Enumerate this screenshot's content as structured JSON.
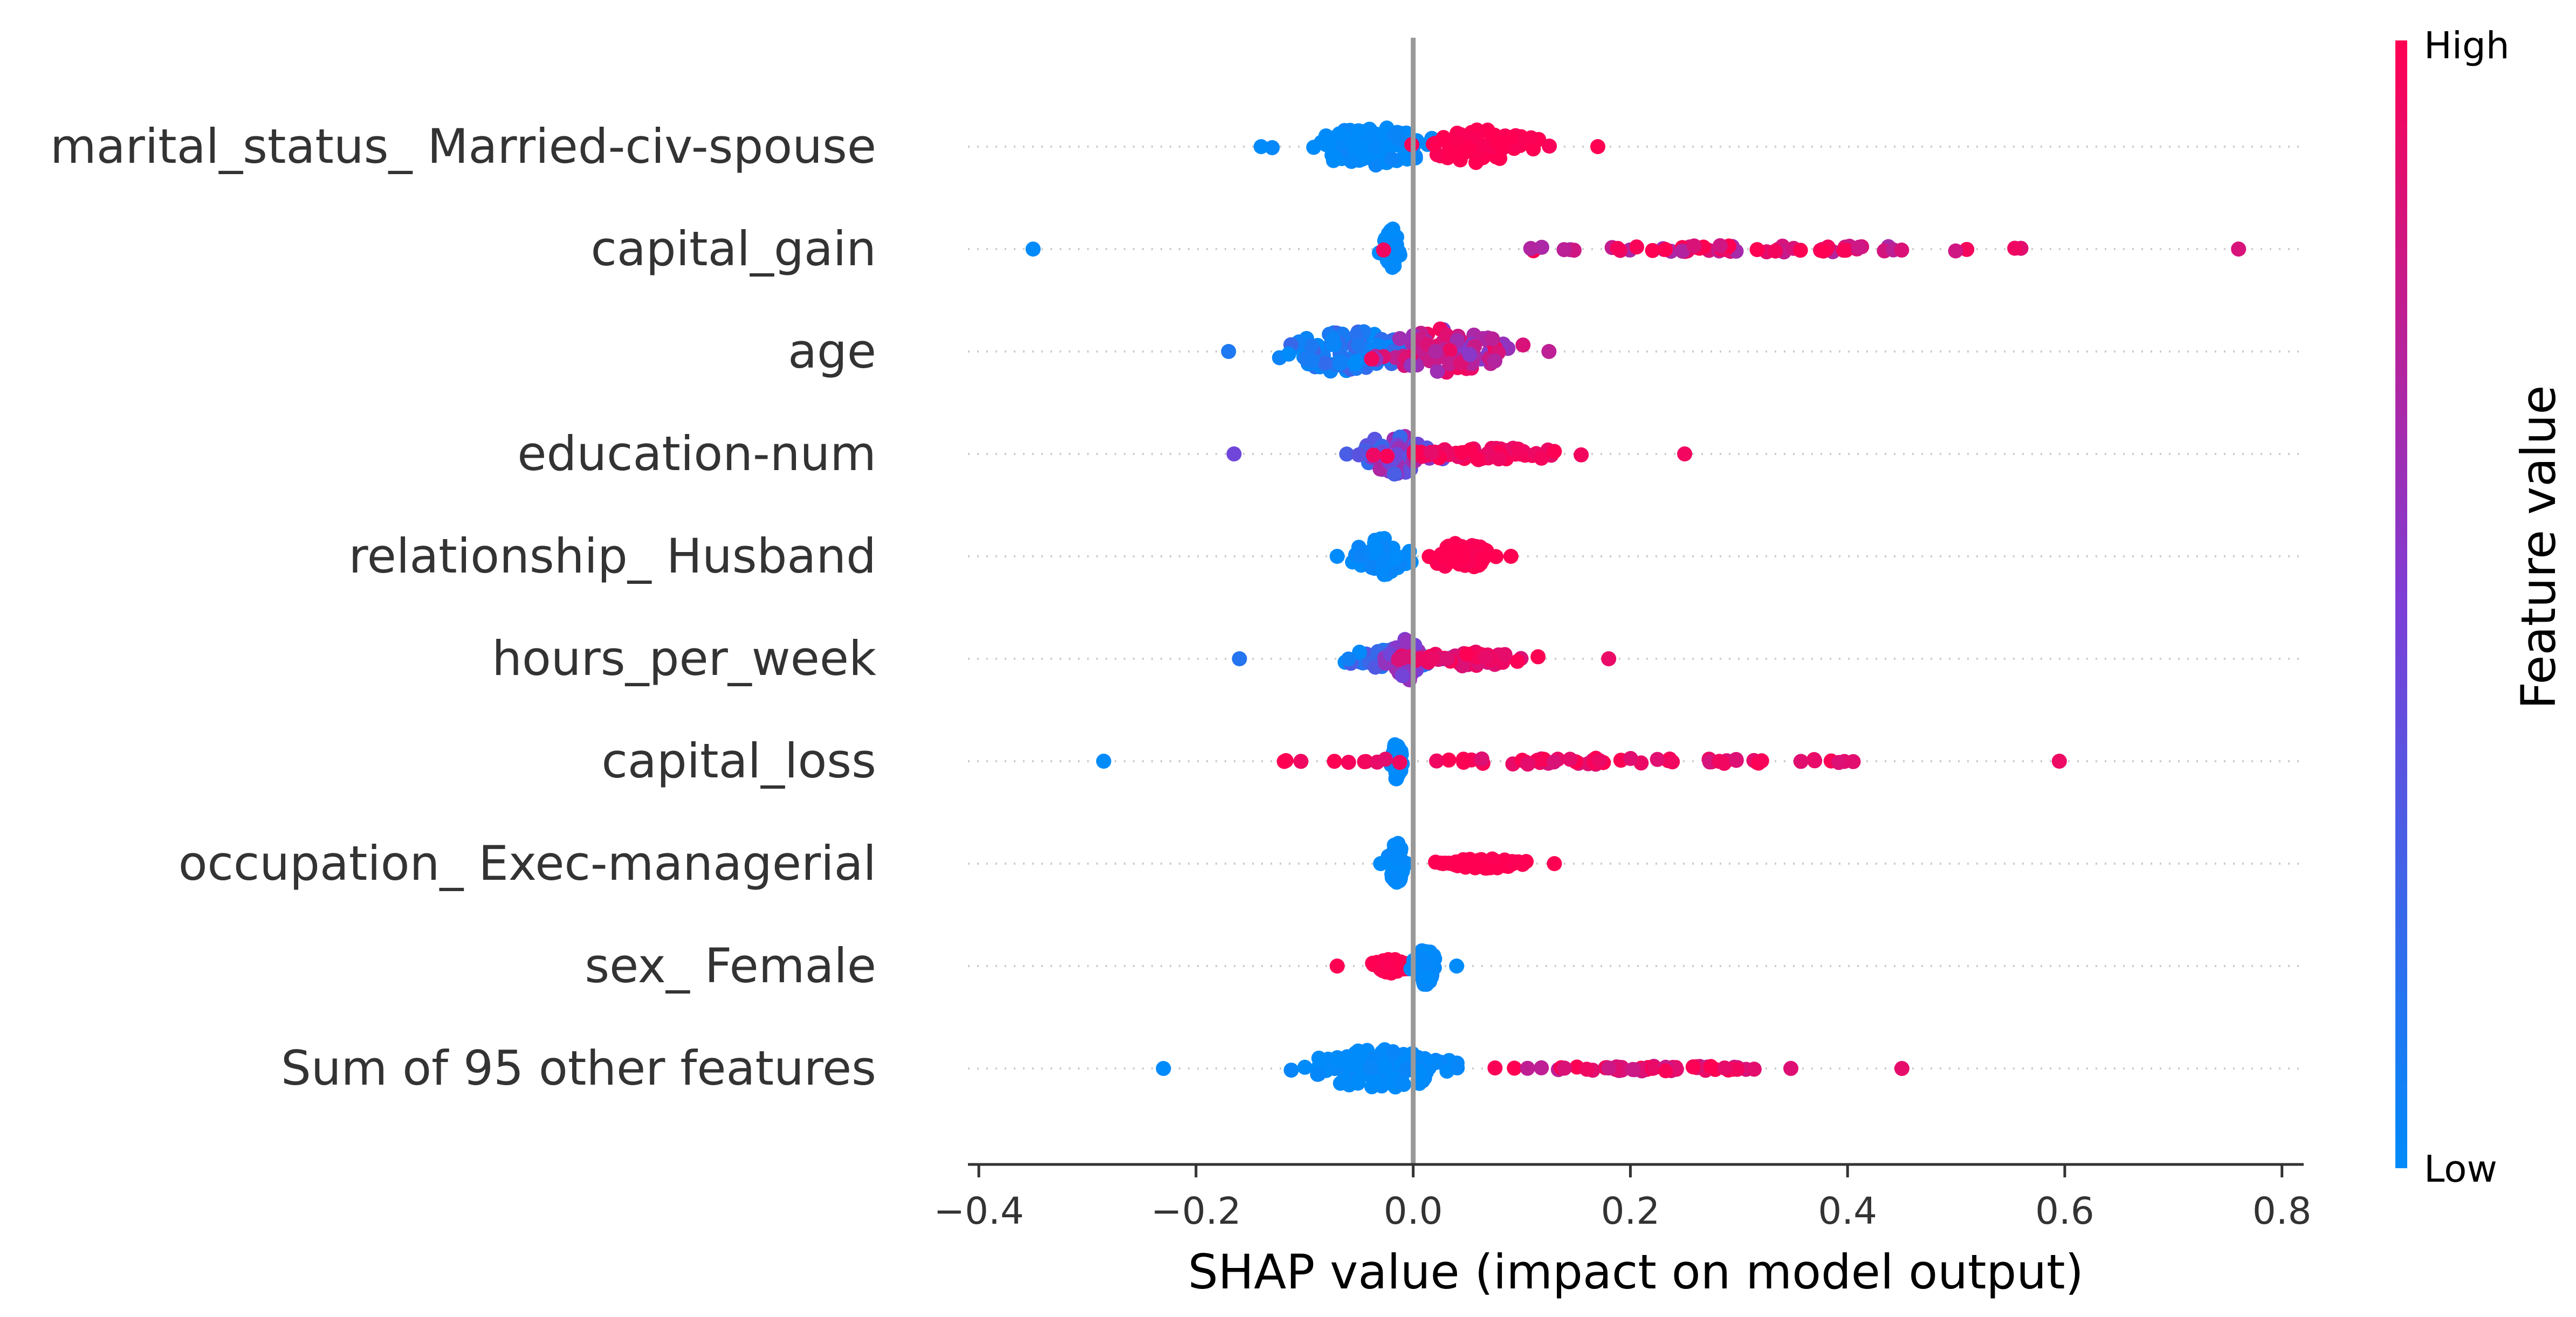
{
  "chart_data": {
    "type": "scatter",
    "subtype": "shap-beeswarm",
    "xlabel": "SHAP value (impact on model output)",
    "xlim": [
      -0.41,
      0.82
    ],
    "xticks": [
      -0.4,
      -0.2,
      0.0,
      0.2,
      0.4,
      0.6,
      0.8
    ],
    "xtick_labels": [
      "−0.4",
      "−0.2",
      "0.0",
      "0.2",
      "0.4",
      "0.6",
      "0.8"
    ],
    "zero_line": true,
    "grid": false,
    "colorbar": {
      "label": "Feature value",
      "high_label": "High",
      "low_label": "Low",
      "colors": [
        "#008bfb",
        "#7c3ed6",
        "#ff0052"
      ]
    },
    "features": [
      {
        "name": "marital_status_ Married-civ-spouse",
        "min": -0.14,
        "max": 0.17,
        "clusters": [
          {
            "center": -0.04,
            "spread": 0.05,
            "half_width": 0.4,
            "hue": 0.0,
            "hue_var": 0.05
          },
          {
            "center": 0.065,
            "spread": 0.05,
            "half_width": 0.33,
            "hue": 1.0,
            "hue_var": 0.03
          }
        ]
      },
      {
        "name": "capital_gain",
        "min": -0.35,
        "max": 0.76,
        "clusters": [
          {
            "center": -0.02,
            "spread": 0.006,
            "half_width": 0.42,
            "hue": 0.0,
            "hue_var": 0.02
          },
          {
            "center": 0.3,
            "spread": 0.22,
            "half_width": 0.07,
            "hue": 0.85,
            "hue_var": 0.2
          }
        ]
      },
      {
        "name": "age",
        "min": -0.17,
        "max": 0.125,
        "clusters": [
          {
            "center": -0.06,
            "spread": 0.05,
            "half_width": 0.42,
            "hue": 0.12,
            "hue_var": 0.15
          },
          {
            "center": 0.03,
            "spread": 0.05,
            "half_width": 0.45,
            "hue": 0.75,
            "hue_var": 0.22
          }
        ]
      },
      {
        "name": "education-num",
        "min": -0.165,
        "max": 0.25,
        "clusters": [
          {
            "center": -0.015,
            "spread": 0.035,
            "half_width": 0.42,
            "hue": 0.45,
            "hue_var": 0.25
          },
          {
            "center": 0.07,
            "spread": 0.08,
            "half_width": 0.12,
            "hue": 0.95,
            "hue_var": 0.05
          }
        ]
      },
      {
        "name": "relationship_ Husband",
        "min": -0.07,
        "max": 0.09,
        "clusters": [
          {
            "center": -0.03,
            "spread": 0.022,
            "half_width": 0.37,
            "hue": 0.0,
            "hue_var": 0.05
          },
          {
            "center": 0.045,
            "spread": 0.025,
            "half_width": 0.27,
            "hue": 1.0,
            "hue_var": 0.03
          }
        ]
      },
      {
        "name": "hours_per_week",
        "min": -0.16,
        "max": 0.18,
        "clusters": [
          {
            "center": -0.02,
            "spread": 0.04,
            "half_width": 0.2,
            "hue": 0.15,
            "hue_var": 0.2
          },
          {
            "center": -0.005,
            "spread": 0.012,
            "half_width": 0.42,
            "hue": 0.55,
            "hue_var": 0.1
          },
          {
            "center": 0.05,
            "spread": 0.05,
            "half_width": 0.14,
            "hue": 0.92,
            "hue_var": 0.08
          }
        ]
      },
      {
        "name": "capital_loss",
        "min": -0.285,
        "max": 0.595,
        "clusters": [
          {
            "center": -0.015,
            "spread": 0.004,
            "half_width": 0.42,
            "hue": 0.0,
            "hue_var": 0.02
          },
          {
            "center": 0.15,
            "spread": 0.25,
            "half_width": 0.06,
            "hue": 0.93,
            "hue_var": 0.1
          }
        ]
      },
      {
        "name": "occupation_ Exec-managerial",
        "min": -0.03,
        "max": 0.13,
        "clusters": [
          {
            "center": -0.015,
            "spread": 0.006,
            "half_width": 0.42,
            "hue": 0.0,
            "hue_var": 0.03
          },
          {
            "center": 0.065,
            "spread": 0.035,
            "half_width": 0.1,
            "hue": 1.0,
            "hue_var": 0.02
          }
        ]
      },
      {
        "name": "sex_ Female",
        "min": -0.07,
        "max": 0.04,
        "clusters": [
          {
            "center": -0.02,
            "spread": 0.015,
            "half_width": 0.14,
            "hue": 1.0,
            "hue_var": 0.03
          },
          {
            "center": 0.012,
            "spread": 0.008,
            "half_width": 0.38,
            "hue": 0.0,
            "hue_var": 0.03
          }
        ]
      },
      {
        "name": "Sum of 95 other features",
        "min": -0.23,
        "max": 0.45,
        "clusters": [
          {
            "center": -0.03,
            "spread": 0.06,
            "half_width": 0.4,
            "hue": 0.0,
            "hue_var": 0.04
          },
          {
            "center": 0.22,
            "spread": 0.1,
            "half_width": 0.05,
            "hue": 0.9,
            "hue_var": 0.15
          }
        ]
      }
    ]
  }
}
